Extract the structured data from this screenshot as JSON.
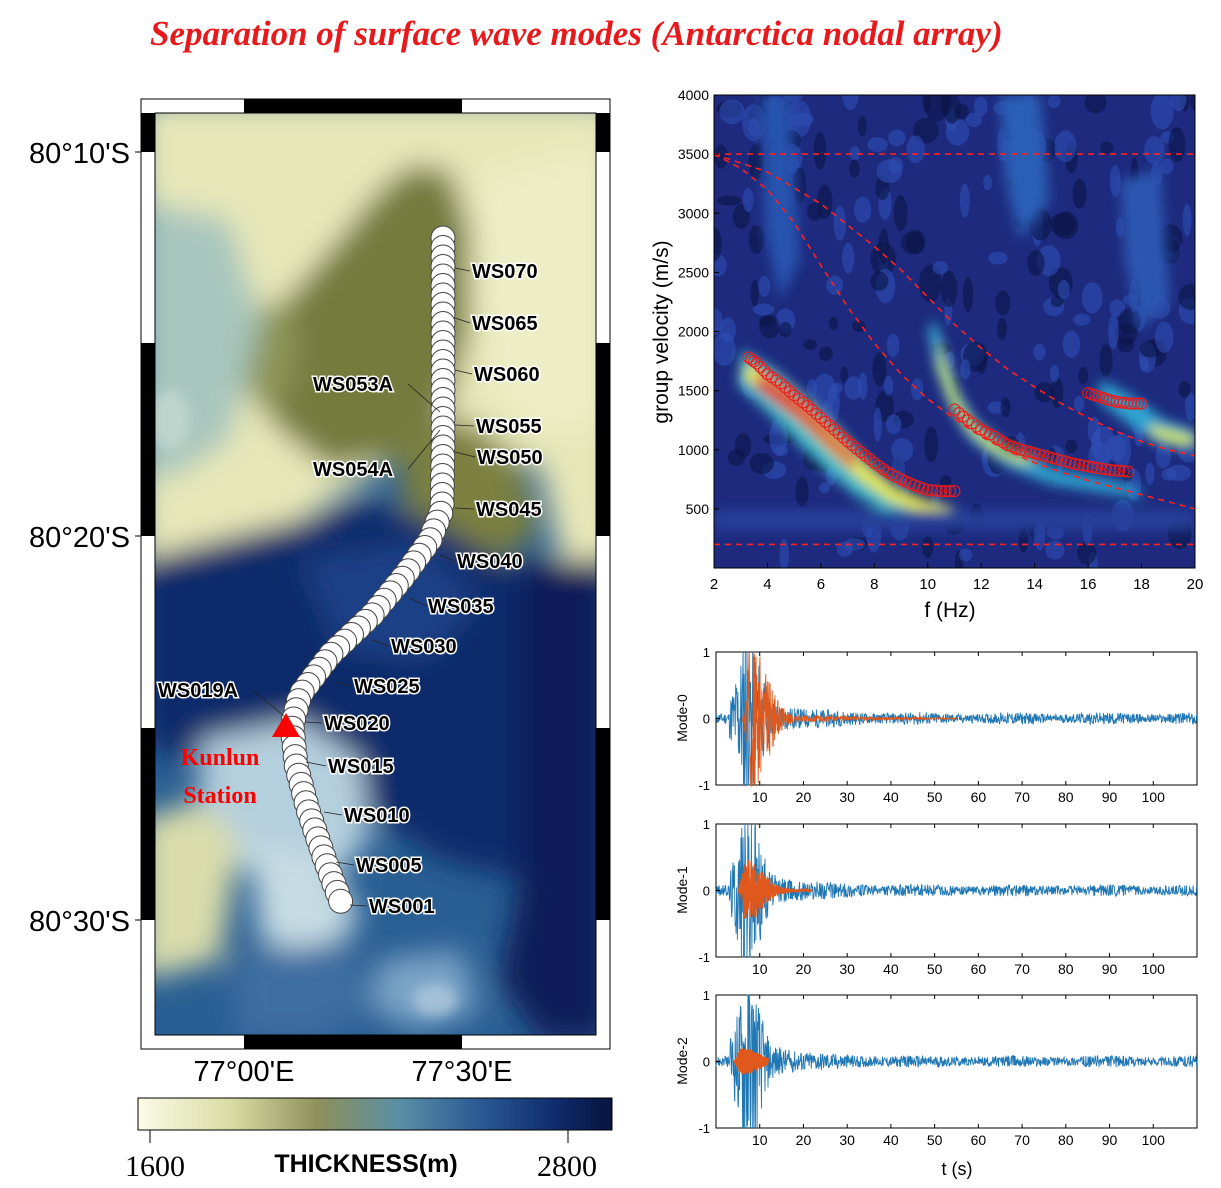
{
  "title": "Separation of surface wave modes (Antarctica nodal array)",
  "map": {
    "lat_labels": [
      "80°10'S",
      "80°20'S",
      "80°30'S"
    ],
    "lon_labels": [
      "77°00'E",
      "77°30'E"
    ],
    "colorbar": {
      "label": "THICKNESS(m)",
      "min_label": "1600",
      "max_label": "2800",
      "min": 1600,
      "max": 2800
    },
    "station_label_line1": "Kunlun",
    "station_label_line2": "Station",
    "station_color": "#ff0000",
    "stations": [
      {
        "label": "WS070"
      },
      {
        "label": "WS065"
      },
      {
        "label": "WS060"
      },
      {
        "label": "WS053A"
      },
      {
        "label": "WS055"
      },
      {
        "label": "WS054A"
      },
      {
        "label": "WS050"
      },
      {
        "label": "WS045"
      },
      {
        "label": "WS040"
      },
      {
        "label": "WS035"
      },
      {
        "label": "WS030"
      },
      {
        "label": "WS025"
      },
      {
        "label": "WS019A"
      },
      {
        "label": "WS020"
      },
      {
        "label": "WS015"
      },
      {
        "label": "WS010"
      },
      {
        "label": "WS005"
      },
      {
        "label": "WS001"
      }
    ]
  },
  "chart_data": [
    {
      "type": "heatmap",
      "xlabel": "f (Hz)",
      "ylabel": "group velocity (m/s)",
      "xlim": [
        2,
        20
      ],
      "ylim": [
        0,
        4000
      ],
      "xticks": [
        2,
        4,
        6,
        8,
        10,
        12,
        14,
        16,
        18,
        20
      ],
      "yticks": [
        500,
        1000,
        1500,
        2000,
        2500,
        3000,
        3500,
        4000
      ],
      "dashed_curves": [
        {
          "x": [
            2,
            20
          ],
          "y": [
            3500,
            3500
          ]
        },
        {
          "x": [
            2,
            20
          ],
          "y": [
            200,
            200
          ]
        },
        {
          "x": [
            2,
            3,
            4,
            5,
            6,
            7,
            8,
            9,
            10,
            11,
            12,
            13,
            14,
            15,
            16,
            17,
            18,
            19,
            20
          ],
          "y": [
            3500,
            3380,
            3200,
            2920,
            2560,
            2210,
            1900,
            1640,
            1430,
            1260,
            1110,
            990,
            890,
            810,
            740,
            680,
            620,
            560,
            500
          ]
        },
        {
          "x": [
            2,
            4,
            6,
            8,
            9,
            10,
            11,
            12,
            13,
            14,
            15,
            16,
            17,
            18,
            19,
            20
          ],
          "y": [
            3500,
            3350,
            3080,
            2720,
            2520,
            2290,
            2060,
            1860,
            1680,
            1530,
            1390,
            1270,
            1160,
            1070,
            1000,
            950
          ]
        }
      ],
      "picks": [
        {
          "name": "Mode-0",
          "x": [
            3.3,
            3.6,
            4.0,
            4.5,
            5.0,
            5.5,
            6.0,
            6.5,
            7.0,
            7.5,
            8.0,
            8.5,
            9.0,
            9.5,
            10.0,
            10.5,
            11.0
          ],
          "y": [
            1780,
            1730,
            1640,
            1560,
            1460,
            1370,
            1270,
            1170,
            1070,
            980,
            890,
            810,
            750,
            700,
            660,
            650,
            650
          ]
        },
        {
          "name": "Mode-1",
          "x": [
            11.0,
            11.5,
            12.0,
            12.5,
            13.0,
            13.5,
            14.0,
            14.5,
            15.0,
            15.5,
            16.0,
            16.5,
            17.0,
            17.5
          ],
          "y": [
            1340,
            1250,
            1170,
            1110,
            1040,
            1000,
            970,
            940,
            910,
            880,
            860,
            840,
            825,
            815
          ]
        },
        {
          "name": "Mode-2",
          "x": [
            16.0,
            16.4,
            16.8,
            17.2,
            17.6,
            18.0
          ],
          "y": [
            1480,
            1450,
            1420,
            1400,
            1390,
            1390
          ]
        }
      ]
    },
    {
      "type": "line",
      "ylabel": "Mode-0",
      "xlim": [
        0,
        110
      ],
      "ylim": [
        -1,
        1
      ],
      "xticks": [
        10,
        20,
        30,
        40,
        50,
        60,
        70,
        80,
        90,
        100
      ],
      "yticks": [
        -1,
        0,
        1
      ],
      "series": [
        {
          "values_desc": "raw",
          "color": "#1f77b4"
        },
        {
          "values_desc": "mode-0 separated",
          "color": "#e0581c",
          "t_start": 6,
          "t_end": 55,
          "peak": 0.8
        }
      ]
    },
    {
      "type": "line",
      "ylabel": "Mode-1",
      "xlim": [
        0,
        110
      ],
      "ylim": [
        -1,
        1
      ],
      "xticks": [
        10,
        20,
        30,
        40,
        50,
        60,
        70,
        80,
        90,
        100
      ],
      "yticks": [
        -1,
        0,
        1
      ],
      "series": [
        {
          "color": "#1f77b4"
        },
        {
          "color": "#e0581c",
          "t_start": 5,
          "t_end": 22,
          "peak": 0.35
        }
      ]
    },
    {
      "type": "line",
      "ylabel": "Mode-2",
      "xlabel": "t (s)",
      "xlim": [
        0,
        110
      ],
      "ylim": [
        -1,
        1
      ],
      "xticks": [
        10,
        20,
        30,
        40,
        50,
        60,
        70,
        80,
        90,
        100
      ],
      "yticks": [
        -1,
        0,
        1
      ],
      "series": [
        {
          "color": "#1f77b4"
        },
        {
          "color": "#e0581c",
          "t_start": 4,
          "t_end": 12,
          "peak": 0.15
        }
      ]
    }
  ]
}
